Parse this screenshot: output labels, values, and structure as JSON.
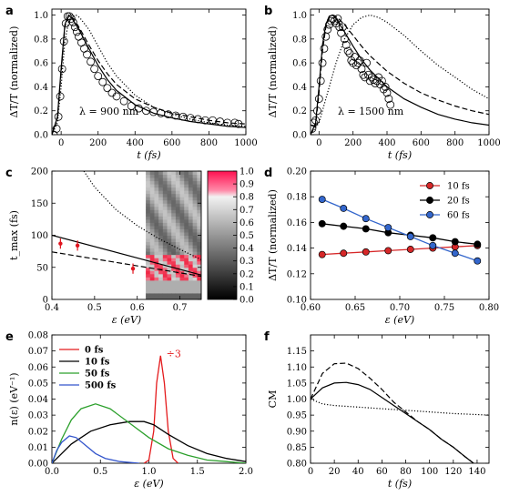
{
  "figure": {
    "panels": [
      "a",
      "b",
      "c",
      "d",
      "e",
      "f"
    ]
  },
  "chart_data": [
    {
      "panel": "a",
      "type": "line",
      "xlabel": "t (fs)",
      "ylabel": "ΔT/T (normalized)",
      "xlim": [
        -50,
        1000
      ],
      "ylim": [
        0.0,
        1.05
      ],
      "xticks": [
        0,
        200,
        400,
        600,
        800,
        1000
      ],
      "yticks": [
        0.0,
        0.2,
        0.4,
        0.6,
        0.8,
        1.0
      ],
      "annotation": "λ = 900 nm",
      "series": [
        {
          "style": "markers-open-circle",
          "x": [
            -40,
            -25,
            -15,
            -5,
            5,
            15,
            25,
            35,
            45,
            55,
            65,
            75,
            85,
            95,
            110,
            125,
            140,
            160,
            180,
            200,
            225,
            250,
            275,
            300,
            340,
            380,
            420,
            460,
            500,
            540,
            580,
            620,
            660,
            700,
            740,
            780,
            820,
            860,
            900,
            940,
            960
          ],
          "y": [
            0.0,
            0.05,
            0.15,
            0.32,
            0.55,
            0.78,
            0.93,
            0.99,
            0.99,
            0.97,
            0.94,
            0.9,
            0.86,
            0.82,
            0.77,
            0.72,
            0.67,
            0.61,
            0.55,
            0.49,
            0.44,
            0.39,
            0.35,
            0.32,
            0.28,
            0.24,
            0.22,
            0.2,
            0.19,
            0.18,
            0.17,
            0.16,
            0.15,
            0.14,
            0.13,
            0.12,
            0.12,
            0.11,
            0.1,
            0.1,
            0.09
          ]
        },
        {
          "style": "solid",
          "x": [
            -50,
            -20,
            0,
            20,
            40,
            60,
            100,
            150,
            200,
            250,
            300,
            400,
            500,
            600,
            700,
            800,
            900,
            1000
          ],
          "y": [
            0.0,
            0.15,
            0.55,
            0.92,
            1.0,
            0.97,
            0.87,
            0.72,
            0.58,
            0.46,
            0.37,
            0.25,
            0.18,
            0.14,
            0.11,
            0.09,
            0.07,
            0.06
          ]
        },
        {
          "style": "dashed",
          "x": [
            -50,
            -20,
            0,
            20,
            40,
            60,
            100,
            150,
            200,
            250,
            300,
            400,
            500,
            600,
            700,
            800,
            900,
            1000
          ],
          "y": [
            0.0,
            0.14,
            0.52,
            0.9,
            0.99,
            0.98,
            0.89,
            0.75,
            0.62,
            0.51,
            0.42,
            0.3,
            0.23,
            0.18,
            0.15,
            0.12,
            0.1,
            0.09
          ]
        },
        {
          "style": "dotted",
          "x": [
            -50,
            -20,
            0,
            20,
            40,
            60,
            80,
            100,
            150,
            200,
            250,
            300,
            400,
            500,
            600,
            700,
            800,
            900,
            1000
          ],
          "y": [
            0.0,
            0.1,
            0.4,
            0.78,
            0.94,
            0.99,
            1.0,
            0.98,
            0.88,
            0.74,
            0.6,
            0.49,
            0.33,
            0.23,
            0.17,
            0.13,
            0.1,
            0.08,
            0.07
          ]
        }
      ]
    },
    {
      "panel": "b",
      "type": "line",
      "xlabel": "t (fs)",
      "ylabel": "ΔT/T (normalized)",
      "xlim": [
        -50,
        1000
      ],
      "ylim": [
        0.0,
        1.05
      ],
      "xticks": [
        0,
        200,
        400,
        600,
        800,
        1000
      ],
      "yticks": [
        0.0,
        0.2,
        0.4,
        0.6,
        0.8,
        1.0
      ],
      "annotation": "λ = 1500 nm",
      "series": [
        {
          "style": "markers-open-circle",
          "x": [
            -40,
            -30,
            -20,
            -10,
            0,
            10,
            20,
            30,
            40,
            50,
            60,
            70,
            80,
            90,
            100,
            110,
            120,
            130,
            140,
            150,
            160,
            170,
            180,
            190,
            200,
            210,
            220,
            230,
            240,
            250,
            260,
            270,
            280,
            290,
            300,
            310,
            320,
            330,
            340,
            350,
            360,
            370,
            380,
            390,
            400,
            410,
            420
          ],
          "y": [
            0.05,
            0.1,
            0.12,
            0.2,
            0.3,
            0.45,
            0.6,
            0.72,
            0.82,
            0.88,
            0.92,
            0.95,
            0.97,
            0.95,
            0.93,
            0.97,
            0.9,
            0.85,
            0.9,
            0.8,
            0.75,
            0.7,
            0.68,
            0.62,
            0.6,
            0.65,
            0.58,
            0.6,
            0.62,
            0.55,
            0.5,
            0.48,
            0.6,
            0.5,
            0.45,
            0.48,
            0.46,
            0.43,
            0.45,
            0.48,
            0.42,
            0.45,
            0.38,
            0.4,
            0.35,
            0.3,
            0.25
          ]
        },
        {
          "style": "solid",
          "x": [
            -50,
            -20,
            0,
            20,
            40,
            60,
            80,
            100,
            150,
            200,
            250,
            300,
            400,
            500,
            600,
            700,
            800,
            900,
            1000
          ],
          "y": [
            0.0,
            0.1,
            0.4,
            0.75,
            0.92,
            0.99,
            1.0,
            0.97,
            0.86,
            0.74,
            0.63,
            0.54,
            0.4,
            0.3,
            0.23,
            0.17,
            0.13,
            0.1,
            0.08
          ]
        },
        {
          "style": "dashed",
          "x": [
            -50,
            -20,
            0,
            20,
            40,
            60,
            80,
            100,
            150,
            200,
            250,
            300,
            400,
            500,
            600,
            700,
            800,
            900,
            1000
          ],
          "y": [
            0.0,
            0.08,
            0.35,
            0.7,
            0.9,
            0.98,
            1.0,
            0.99,
            0.92,
            0.83,
            0.74,
            0.66,
            0.53,
            0.43,
            0.35,
            0.29,
            0.24,
            0.2,
            0.17
          ]
        },
        {
          "style": "dotted",
          "x": [
            -50,
            0,
            50,
            100,
            150,
            200,
            250,
            300,
            350,
            400,
            500,
            600,
            700,
            800,
            900,
            1000
          ],
          "y": [
            0.0,
            0.1,
            0.35,
            0.6,
            0.8,
            0.92,
            0.98,
            1.0,
            0.98,
            0.94,
            0.83,
            0.7,
            0.58,
            0.48,
            0.38,
            0.3
          ]
        }
      ]
    },
    {
      "panel": "c",
      "type": "heatmap",
      "xlabel": "ε (eV)",
      "ylabel": "t_max (fs)",
      "xlim": [
        0.4,
        0.75
      ],
      "ylim": [
        0,
        200
      ],
      "xticks": [
        0.4,
        0.5,
        0.6,
        0.7
      ],
      "yticks": [
        0,
        50,
        100,
        150,
        200
      ],
      "colorbar": {
        "range": [
          0.0,
          1.0
        ],
        "ticks": [
          0.0,
          0.1,
          0.2,
          0.3,
          0.4,
          0.5,
          0.6,
          0.7,
          0.8,
          0.9,
          1.0
        ]
      },
      "series": [
        {
          "style": "solid",
          "x": [
            0.4,
            0.75
          ],
          "y": [
            100,
            38
          ]
        },
        {
          "style": "dashed",
          "x": [
            0.4,
            0.75
          ],
          "y": [
            74,
            36
          ]
        },
        {
          "style": "dotted",
          "x": [
            0.475,
            0.5,
            0.55,
            0.6,
            0.65,
            0.7,
            0.75
          ],
          "y": [
            200,
            175,
            140,
            115,
            95,
            78,
            62
          ]
        },
        {
          "style": "red-markers-with-errorbars",
          "x": [
            0.42,
            0.46,
            0.59
          ],
          "y": [
            87,
            84,
            48
          ]
        }
      ]
    },
    {
      "panel": "d",
      "type": "line",
      "xlabel": "ε (eV)",
      "ylabel": "ΔT/T (normalized)",
      "xlim": [
        0.6,
        0.8
      ],
      "ylim": [
        0.1,
        0.2
      ],
      "xticks": [
        0.6,
        0.65,
        0.7,
        0.75,
        0.8
      ],
      "yticks": [
        0.1,
        0.12,
        0.14,
        0.16,
        0.18,
        0.2
      ],
      "legend": "top-right",
      "series": [
        {
          "name": "10 fs",
          "color": "#d62728",
          "x": [
            0.613,
            0.637,
            0.662,
            0.687,
            0.712,
            0.737,
            0.762,
            0.787
          ],
          "y": [
            0.135,
            0.136,
            0.137,
            0.138,
            0.139,
            0.14,
            0.141,
            0.142
          ]
        },
        {
          "name": "20 fs",
          "color": "#000000",
          "x": [
            0.613,
            0.637,
            0.662,
            0.687,
            0.712,
            0.737,
            0.762,
            0.787
          ],
          "y": [
            0.159,
            0.157,
            0.155,
            0.152,
            0.15,
            0.148,
            0.145,
            0.143
          ]
        },
        {
          "name": "60 fs",
          "color": "#3366cc",
          "x": [
            0.613,
            0.637,
            0.662,
            0.687,
            0.712,
            0.737,
            0.762,
            0.787
          ],
          "y": [
            0.178,
            0.171,
            0.163,
            0.156,
            0.149,
            0.142,
            0.136,
            0.13
          ]
        }
      ]
    },
    {
      "panel": "e",
      "type": "line",
      "xlabel": "ε (eV)",
      "ylabel": "n(ε) (eV⁻¹)",
      "xlim": [
        0.0,
        2.0
      ],
      "ylim": [
        0.0,
        0.08
      ],
      "xticks": [
        0.0,
        0.5,
        1.0,
        1.5,
        2.0
      ],
      "yticks": [
        0.0,
        0.01,
        0.02,
        0.03,
        0.04,
        0.05,
        0.06,
        0.07,
        0.08
      ],
      "legend": "top-left",
      "annotation": "÷3",
      "series": [
        {
          "name": "0 fs",
          "color": "#e41a1c",
          "x": [
            0.95,
            1.0,
            1.05,
            1.08,
            1.12,
            1.16,
            1.2,
            1.25,
            1.3
          ],
          "y": [
            0.0,
            0.002,
            0.02,
            0.05,
            0.067,
            0.05,
            0.02,
            0.003,
            0.0
          ]
        },
        {
          "name": "10 fs",
          "color": "#000000",
          "x": [
            0.0,
            0.1,
            0.2,
            0.4,
            0.6,
            0.8,
            0.95,
            1.05,
            1.2,
            1.4,
            1.6,
            1.8,
            2.0
          ],
          "y": [
            0.0,
            0.006,
            0.012,
            0.02,
            0.024,
            0.026,
            0.026,
            0.024,
            0.018,
            0.011,
            0.006,
            0.003,
            0.001
          ]
        },
        {
          "name": "50 fs",
          "color": "#2ca02c",
          "x": [
            0.0,
            0.1,
            0.2,
            0.3,
            0.45,
            0.6,
            0.8,
            1.0,
            1.2,
            1.4,
            1.6,
            1.8,
            2.0
          ],
          "y": [
            0.0,
            0.015,
            0.027,
            0.034,
            0.037,
            0.034,
            0.025,
            0.016,
            0.009,
            0.005,
            0.002,
            0.001,
            0.0
          ]
        },
        {
          "name": "500 fs",
          "color": "#3355cc",
          "x": [
            0.0,
            0.05,
            0.1,
            0.18,
            0.25,
            0.35,
            0.45,
            0.55,
            0.7,
            0.9
          ],
          "y": [
            0.0,
            0.008,
            0.013,
            0.017,
            0.016,
            0.011,
            0.006,
            0.003,
            0.001,
            0.0
          ]
        }
      ]
    },
    {
      "panel": "f",
      "type": "line",
      "xlabel": "t (fs)",
      "ylabel": "CM",
      "xlim": [
        0,
        150
      ],
      "ylim": [
        0.8,
        1.2
      ],
      "xticks": [
        0,
        20,
        40,
        60,
        80,
        100,
        120,
        140
      ],
      "yticks": [
        0.8,
        0.85,
        0.9,
        0.95,
        1.0,
        1.05,
        1.1,
        1.15
      ],
      "series": [
        {
          "style": "solid",
          "x": [
            0,
            10,
            20,
            30,
            40,
            50,
            60,
            70,
            80,
            90,
            100,
            110,
            120,
            130,
            137
          ],
          "y": [
            1.0,
            1.035,
            1.05,
            1.052,
            1.045,
            1.03,
            1.005,
            0.98,
            0.955,
            0.93,
            0.905,
            0.875,
            0.85,
            0.82,
            0.8
          ]
        },
        {
          "style": "dashed",
          "x": [
            0,
            10,
            20,
            30,
            40,
            50,
            60,
            70,
            80,
            90,
            100,
            110,
            120,
            130,
            137
          ],
          "y": [
            1.0,
            1.08,
            1.11,
            1.112,
            1.095,
            1.065,
            1.03,
            0.99,
            0.96,
            0.93,
            0.905,
            0.875,
            0.85,
            0.82,
            0.8
          ]
        },
        {
          "style": "dotted",
          "x": [
            0,
            10,
            20,
            40,
            60,
            80,
            100,
            120,
            150
          ],
          "y": [
            1.0,
            0.985,
            0.98,
            0.975,
            0.97,
            0.965,
            0.96,
            0.955,
            0.95
          ]
        }
      ]
    }
  ]
}
